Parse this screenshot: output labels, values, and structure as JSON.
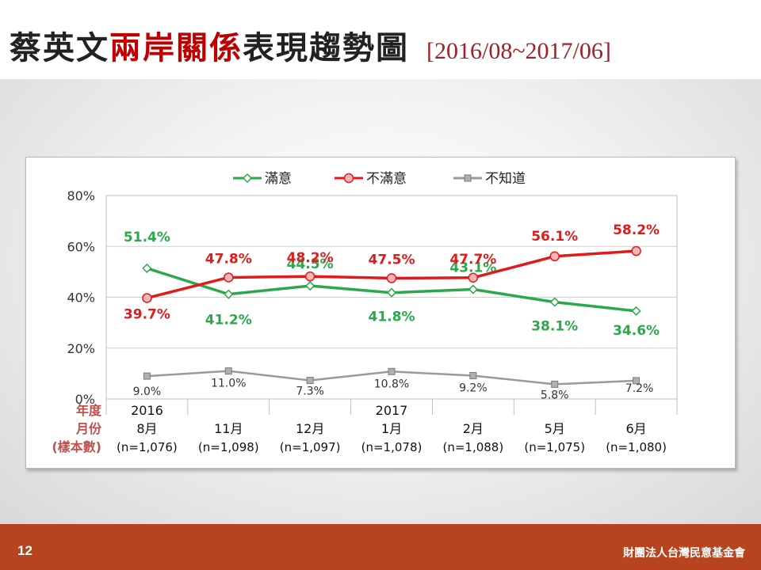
{
  "title": {
    "part1": "蔡英文",
    "part2": "兩岸關係",
    "part3": "表現趨勢圖",
    "range": "[2016/08~2017/06]"
  },
  "footer": {
    "page_number": "12",
    "organization": "財團法人台灣民意基金會"
  },
  "colors": {
    "satisfied": "#2aa84a",
    "dissatisfied": "#e01b1b",
    "unknown": "#9a9a9a",
    "title_red": "#c00000",
    "row_label": "#c0504d",
    "footer_bg": "#b5441f"
  },
  "chart_data": {
    "type": "line",
    "ylim": [
      0,
      80
    ],
    "yticks": [
      "0%",
      "20%",
      "40%",
      "60%",
      "80%"
    ],
    "ytick_values": [
      0,
      20,
      40,
      60,
      80
    ],
    "grid": true,
    "legend_position": "top",
    "row_labels": [
      "年度",
      "月份",
      "(樣本數)"
    ],
    "categories": [
      {
        "year": "2016",
        "month": "8月",
        "n": "(n=1,076)"
      },
      {
        "year": "",
        "month": "11月",
        "n": "(n=1,098)"
      },
      {
        "year": "",
        "month": "12月",
        "n": "(n=1,097)"
      },
      {
        "year": "2017",
        "month": "1月",
        "n": "(n=1,078)"
      },
      {
        "year": "",
        "month": "2月",
        "n": "(n=1,088)"
      },
      {
        "year": "",
        "month": "5月",
        "n": "(n=1,075)"
      },
      {
        "year": "",
        "month": "6月",
        "n": "(n=1,080)"
      }
    ],
    "series": [
      {
        "name": "滿意",
        "key": "satisfied",
        "values": [
          51.4,
          41.2,
          44.5,
          41.8,
          43.1,
          38.1,
          34.6
        ],
        "labels": [
          "51.4%",
          "41.2%",
          "44.5%",
          "41.8%",
          "43.1%",
          "38.1%",
          "34.6%"
        ]
      },
      {
        "name": "不滿意",
        "key": "dissatisfied",
        "values": [
          39.7,
          47.8,
          48.2,
          47.5,
          47.7,
          56.1,
          58.2
        ],
        "labels": [
          "39.7%",
          "47.8%",
          "48.2%",
          "47.5%",
          "47.7%",
          "56.1%",
          "58.2%"
        ]
      },
      {
        "name": "不知道",
        "key": "unknown",
        "values": [
          9.0,
          11.0,
          7.3,
          10.8,
          9.2,
          5.8,
          7.2
        ],
        "labels": [
          "9.0%",
          "11.0%",
          "7.3%",
          "10.8%",
          "9.2%",
          "5.8%",
          "7.2%"
        ]
      }
    ]
  }
}
